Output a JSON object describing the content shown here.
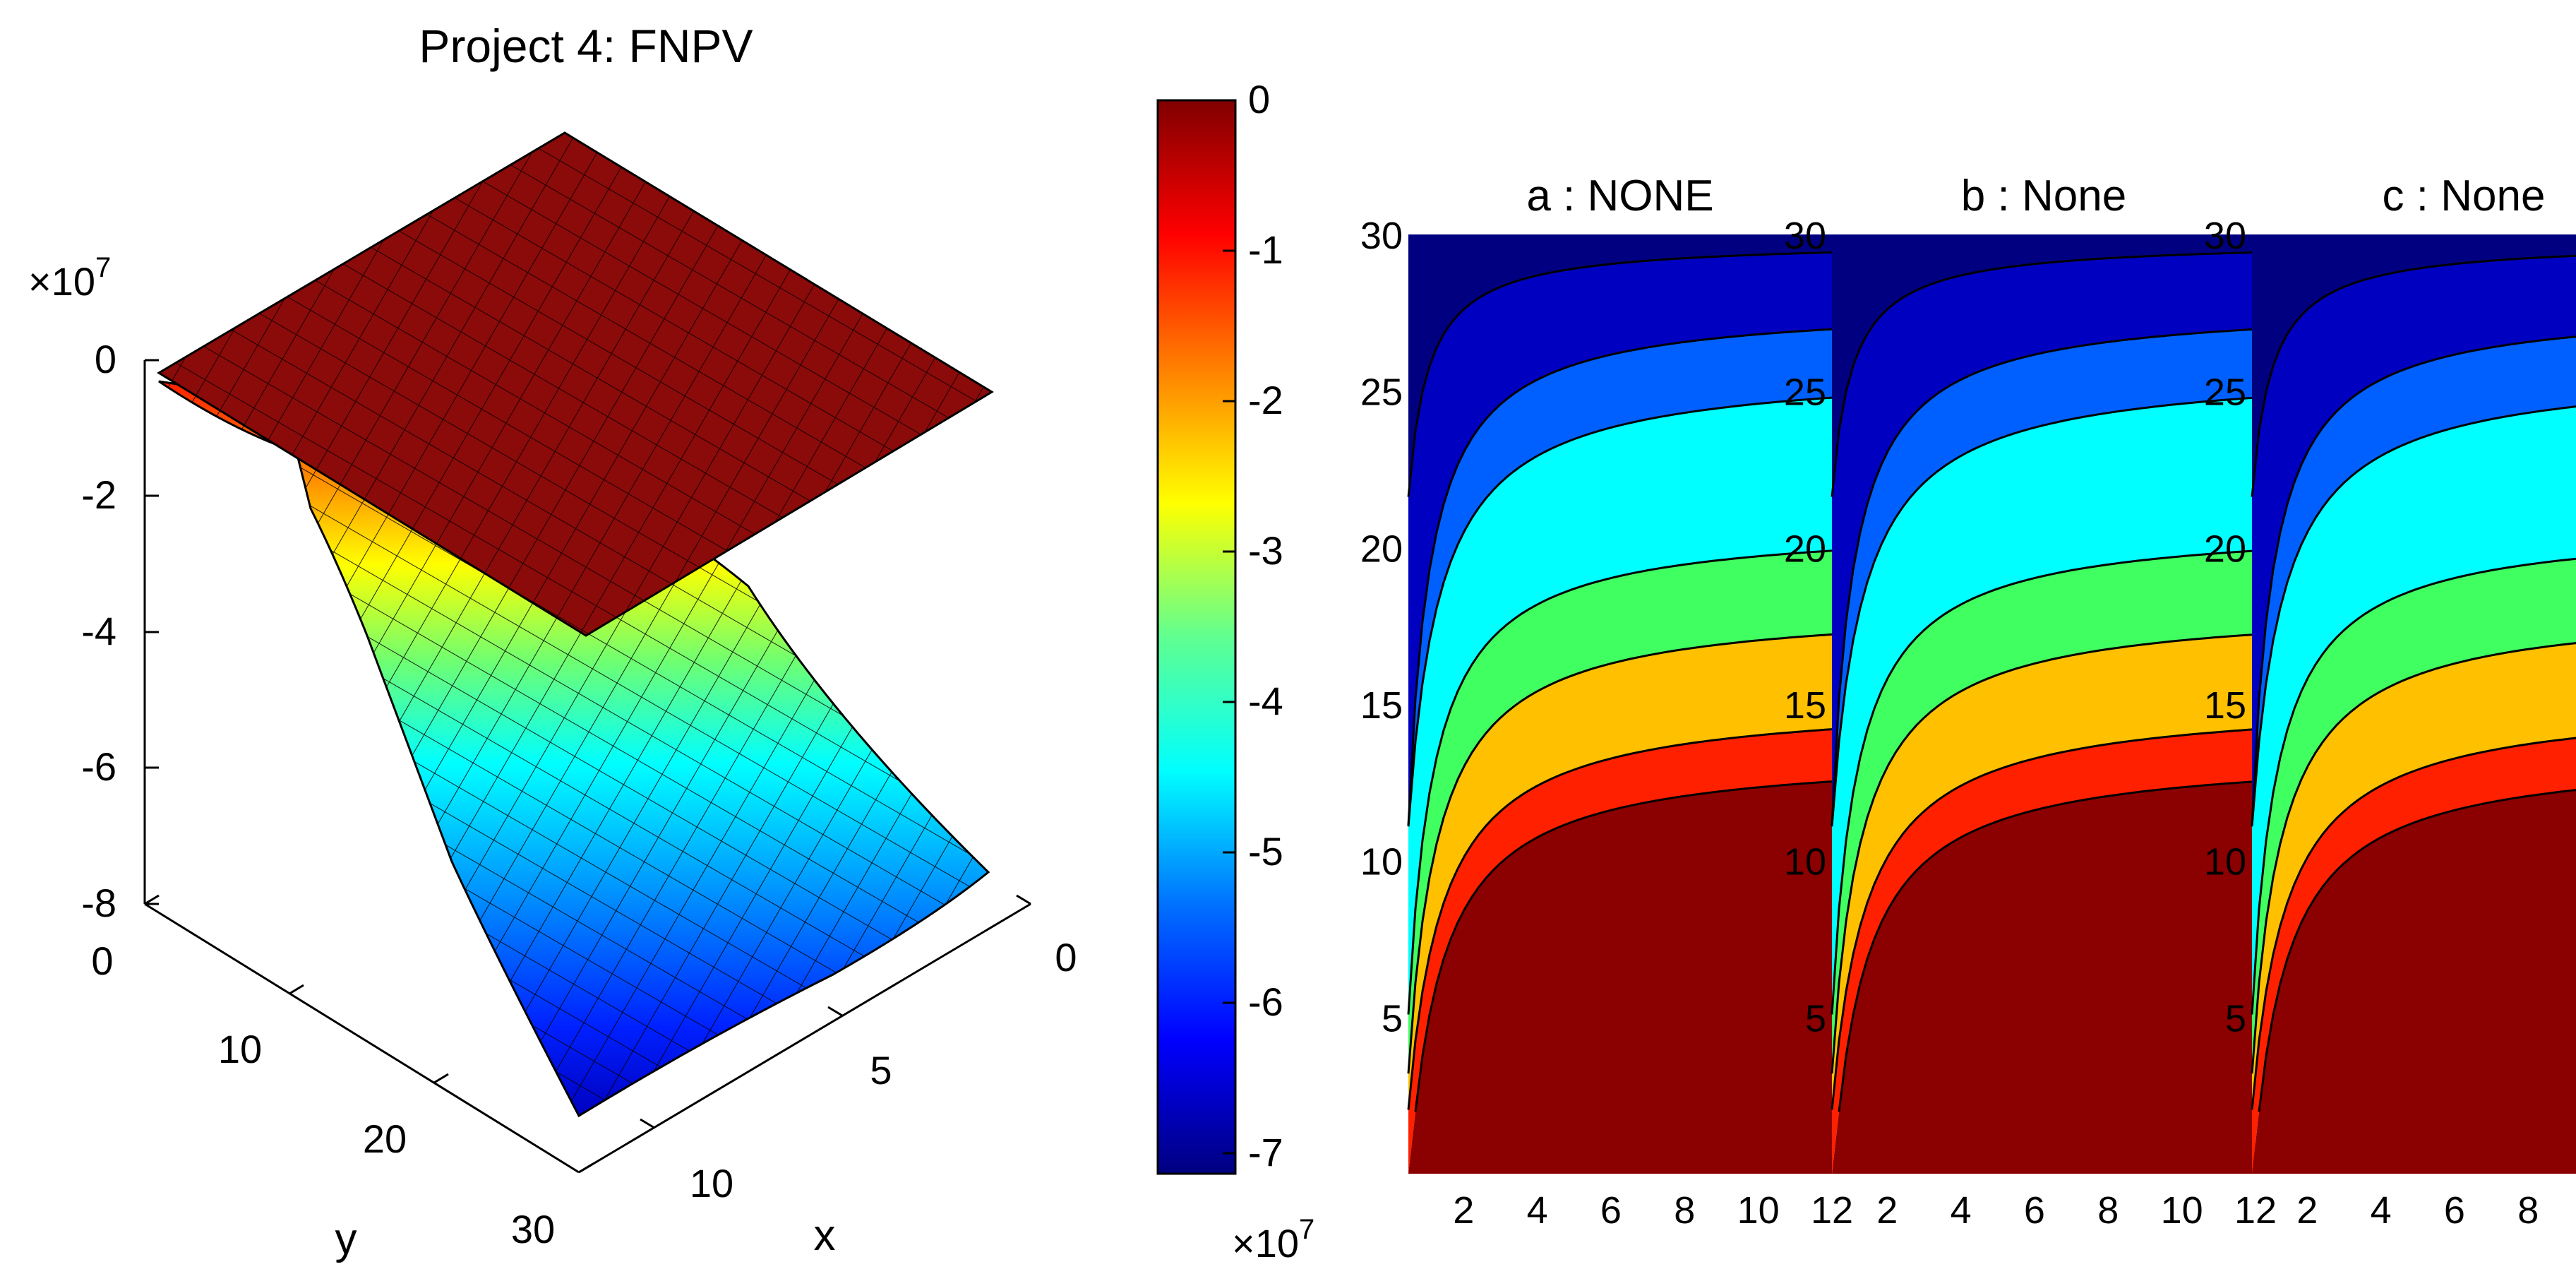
{
  "figure": {
    "surface": {
      "title": "Project 4: FNPV",
      "z_multiplier": "×10",
      "z_multiplier_exp": "7",
      "z_ticks": [
        "0",
        "-2",
        "-4",
        "-6",
        "-8"
      ],
      "y_ticks": [
        "0",
        "10",
        "20",
        "30"
      ],
      "x_ticks": [
        "0",
        "5",
        "10"
      ],
      "x_label": "x",
      "y_label": "y"
    },
    "colorbar": {
      "ticks": [
        "0",
        "-1",
        "-2",
        "-3",
        "-4",
        "-5",
        "-6",
        "-7"
      ],
      "multiplier": "×10",
      "multiplier_exp": "7",
      "colormap": [
        "#000080",
        "#0000ff",
        "#0080ff",
        "#00ffff",
        "#80ff80",
        "#ffff00",
        "#ff8000",
        "#ff0000",
        "#800000"
      ]
    },
    "contours": [
      {
        "title": "a : NONE"
      },
      {
        "title": "b : None"
      },
      {
        "title": "c : None"
      }
    ],
    "contour_x_ticks": [
      "2",
      "4",
      "6",
      "8",
      "10",
      "12"
    ],
    "contour_y_ticks": [
      "5",
      "10",
      "15",
      "20",
      "25",
      "30"
    ]
  },
  "chart_data": [
    {
      "type": "surface",
      "title": "Project 4: FNPV",
      "x_range": [
        0,
        12
      ],
      "y_range": [
        0,
        30
      ],
      "z_range": [
        -80000000,
        0
      ],
      "z_scale_label": "×10^7",
      "layers": [
        {
          "name": "",
          "description": "flat plane",
          "z": 0
        },
        {
          "name": "",
          "description": "curved surface",
          "z_min": -72000000,
          "z_max": 0
        }
      ]
    },
    {
      "type": "colorbar",
      "range": [
        -72000000,
        0
      ],
      "ticks": [
        0,
        -10000000,
        -20000000,
        -30000000,
        -40000000,
        -50000000,
        -60000000,
        -70000000
      ]
    },
    {
      "type": "contour",
      "title": "a : NONE",
      "x_range": [
        0.5,
        12
      ],
      "y_range": [
        0,
        30
      ],
      "levels": [
        0,
        -10000000,
        -20000000,
        -30000000,
        -40000000,
        -50000000,
        -60000000
      ],
      "bands_bottom_to_top": [
        "#8b0000",
        "#ff2000",
        "#ffc000",
        "#40ff60",
        "#00ffff",
        "#0060ff",
        "#0000c0",
        "#000080"
      ]
    },
    {
      "type": "contour",
      "title": "b : None",
      "x_range": [
        0.5,
        12
      ],
      "y_range": [
        0,
        30
      ],
      "levels": [
        0,
        -10000000,
        -20000000,
        -30000000,
        -40000000,
        -50000000,
        -60000000
      ],
      "bands_bottom_to_top": [
        "#8b0000",
        "#ff2000",
        "#ffc000",
        "#40ff60",
        "#00ffff",
        "#0060ff",
        "#0000c0",
        "#000080"
      ]
    },
    {
      "type": "contour",
      "title": "c : None",
      "x_range": [
        0.5,
        12
      ],
      "y_range": [
        0,
        30
      ],
      "levels": [
        0,
        -10000000,
        -20000000,
        -30000000,
        -40000000,
        -50000000,
        -60000000
      ],
      "bands_bottom_to_top": [
        "#8b0000",
        "#ff2000",
        "#ffc000",
        "#40ff60",
        "#00ffff",
        "#0060ff",
        "#0000c0",
        "#000080"
      ]
    }
  ]
}
